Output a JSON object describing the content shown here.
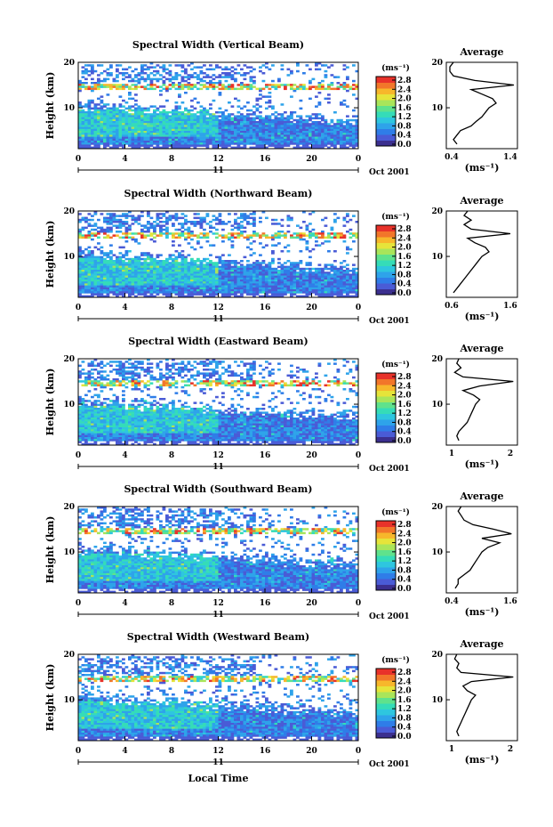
{
  "colors": {
    "colorbar": [
      "#3b2f8f",
      "#4a5bd6",
      "#2f7de8",
      "#2ea3ea",
      "#2ec6df",
      "#35dcb8",
      "#5fe28c",
      "#a9e55a",
      "#e6e43a",
      "#f7b72b",
      "#f2762a",
      "#e8322a"
    ],
    "background": "#ffffff",
    "line": "#000000"
  },
  "xaxis": {
    "ticks": [
      "0",
      "4",
      "8",
      "12",
      "16",
      "20",
      "0"
    ],
    "date_label": "11",
    "month_label": "Oct 2001",
    "xlabel": "Local Time"
  },
  "colorbar_unit": "(ms⁻¹)",
  "colorbar_ticks": [
    "2.8",
    "2.4",
    "2.0",
    "1.6",
    "1.2",
    "0.8",
    "0.4",
    "0.0"
  ],
  "profile_title": "Average",
  "profile_xlabel": "(ms⁻¹)",
  "panels": [
    {
      "title": "Spectral Width (Vertical Beam)",
      "ylabel": "Height (km)",
      "yticks": [
        "20",
        "10"
      ],
      "profile_xticks": [
        "0.4",
        "1.4"
      ]
    },
    {
      "title": "Spectral Width (Northward Beam)",
      "ylabel": "Height (km)",
      "yticks": [
        "20",
        "10"
      ],
      "profile_xticks": [
        "0.6",
        "1.6"
      ]
    },
    {
      "title": "Spectral Width (Eastward Beam)",
      "ylabel": "Height (km)",
      "yticks": [
        "20",
        "10"
      ],
      "profile_xticks": [
        "1",
        "2"
      ]
    },
    {
      "title": "Spectral Width (Southward Beam)",
      "ylabel": "Height (km)",
      "yticks": [
        "20",
        "10"
      ],
      "profile_xticks": [
        "0.4",
        "1.6"
      ]
    },
    {
      "title": "Spectral Width (Westward Beam)",
      "ylabel": "Height (km)",
      "yticks": [
        "20",
        "10"
      ],
      "profile_xticks": [
        "1",
        "2"
      ]
    }
  ],
  "chart_data": [
    {
      "type": "heatmap",
      "title": "Spectral Width (Vertical Beam)",
      "xlabel": "Local Time",
      "ylabel": "Height (km)",
      "x_range_hours": [
        0,
        24
      ],
      "ylim": [
        1,
        20
      ],
      "colorbar_range": [
        0.0,
        3.0
      ],
      "units": "ms-1",
      "date": "11 Oct 2001",
      "average_profile": {
        "title": "Average",
        "xlim": [
          0.4,
          1.4
        ],
        "points": [
          [
            0.55,
            2
          ],
          [
            0.5,
            3
          ],
          [
            0.55,
            4
          ],
          [
            0.6,
            5
          ],
          [
            0.75,
            6
          ],
          [
            0.82,
            7
          ],
          [
            0.9,
            8
          ],
          [
            0.95,
            9
          ],
          [
            1.0,
            10
          ],
          [
            1.1,
            11
          ],
          [
            1.05,
            12
          ],
          [
            0.9,
            13
          ],
          [
            0.75,
            14
          ],
          [
            1.35,
            15
          ],
          [
            0.8,
            16
          ],
          [
            0.5,
            17
          ],
          [
            0.45,
            18
          ],
          [
            0.45,
            19
          ],
          [
            0.5,
            20
          ]
        ]
      }
    },
    {
      "type": "heatmap",
      "title": "Spectral Width (Northward Beam)",
      "xlabel": "Local Time",
      "ylabel": "Height (km)",
      "x_range_hours": [
        0,
        24
      ],
      "ylim": [
        1,
        20
      ],
      "colorbar_range": [
        0.0,
        3.0
      ],
      "units": "ms-1",
      "date": "11 Oct 2001",
      "average_profile": {
        "title": "Average",
        "xlim": [
          0.6,
          1.6
        ],
        "points": [
          [
            0.7,
            2
          ],
          [
            0.75,
            3
          ],
          [
            0.8,
            4
          ],
          [
            0.85,
            5
          ],
          [
            0.9,
            6
          ],
          [
            0.95,
            7
          ],
          [
            1.0,
            8
          ],
          [
            1.05,
            9
          ],
          [
            1.1,
            10
          ],
          [
            1.2,
            11
          ],
          [
            1.15,
            12
          ],
          [
            1.0,
            13
          ],
          [
            0.9,
            14
          ],
          [
            1.5,
            15
          ],
          [
            0.95,
            16
          ],
          [
            0.85,
            17
          ],
          [
            0.95,
            18
          ],
          [
            0.85,
            19
          ],
          [
            0.9,
            20
          ]
        ]
      }
    },
    {
      "type": "heatmap",
      "title": "Spectral Width (Eastward Beam)",
      "xlabel": "Local Time",
      "ylabel": "Height (km)",
      "x_range_hours": [
        0,
        24
      ],
      "ylim": [
        1,
        20
      ],
      "colorbar_range": [
        0.0,
        3.0
      ],
      "units": "ms-1",
      "date": "11 Oct 2001",
      "average_profile": {
        "title": "Average",
        "xlim": [
          0.5,
          2.2
        ],
        "points": [
          [
            0.8,
            2
          ],
          [
            0.75,
            3
          ],
          [
            0.8,
            4
          ],
          [
            0.9,
            5
          ],
          [
            1.0,
            6
          ],
          [
            1.05,
            7
          ],
          [
            1.1,
            8
          ],
          [
            1.15,
            9
          ],
          [
            1.2,
            10
          ],
          [
            1.3,
            11
          ],
          [
            1.15,
            12
          ],
          [
            0.9,
            13
          ],
          [
            1.3,
            14
          ],
          [
            2.1,
            15
          ],
          [
            0.9,
            16
          ],
          [
            0.7,
            17
          ],
          [
            0.85,
            18
          ],
          [
            0.75,
            19
          ],
          [
            0.8,
            20
          ]
        ]
      }
    },
    {
      "type": "heatmap",
      "title": "Spectral Width (Southward Beam)",
      "xlabel": "Local Time",
      "ylabel": "Height (km)",
      "x_range_hours": [
        0,
        24
      ],
      "ylim": [
        1,
        20
      ],
      "colorbar_range": [
        0.0,
        3.0
      ],
      "units": "ms-1",
      "date": "11 Oct 2001",
      "average_profile": {
        "title": "Average",
        "xlim": [
          0.4,
          1.6
        ],
        "points": [
          [
            0.55,
            2
          ],
          [
            0.6,
            3
          ],
          [
            0.6,
            4
          ],
          [
            0.7,
            5
          ],
          [
            0.8,
            6
          ],
          [
            0.85,
            7
          ],
          [
            0.9,
            8
          ],
          [
            0.95,
            9
          ],
          [
            1.0,
            10
          ],
          [
            1.1,
            11
          ],
          [
            1.3,
            12
          ],
          [
            1.0,
            13
          ],
          [
            1.5,
            14
          ],
          [
            1.2,
            15
          ],
          [
            0.85,
            16
          ],
          [
            0.7,
            17
          ],
          [
            0.65,
            18
          ],
          [
            0.6,
            19
          ],
          [
            0.65,
            20
          ]
        ]
      }
    },
    {
      "type": "heatmap",
      "title": "Spectral Width (Westward Beam)",
      "xlabel": "Local Time",
      "ylabel": "Height (km)",
      "x_range_hours": [
        0,
        24
      ],
      "ylim": [
        1,
        20
      ],
      "colorbar_range": [
        0.0,
        3.0
      ],
      "units": "ms-1",
      "date": "11 Oct 2001",
      "average_profile": {
        "title": "Average",
        "xlim": [
          0.5,
          2.2
        ],
        "points": [
          [
            0.8,
            2
          ],
          [
            0.75,
            3
          ],
          [
            0.8,
            4
          ],
          [
            0.85,
            5
          ],
          [
            0.9,
            6
          ],
          [
            0.95,
            7
          ],
          [
            1.0,
            8
          ],
          [
            1.05,
            9
          ],
          [
            1.1,
            10
          ],
          [
            1.2,
            11
          ],
          [
            1.0,
            12
          ],
          [
            0.9,
            13
          ],
          [
            1.1,
            14
          ],
          [
            2.1,
            15
          ],
          [
            0.85,
            16
          ],
          [
            0.75,
            17
          ],
          [
            0.8,
            18
          ],
          [
            0.7,
            19
          ],
          [
            0.75,
            20
          ]
        ]
      }
    }
  ]
}
